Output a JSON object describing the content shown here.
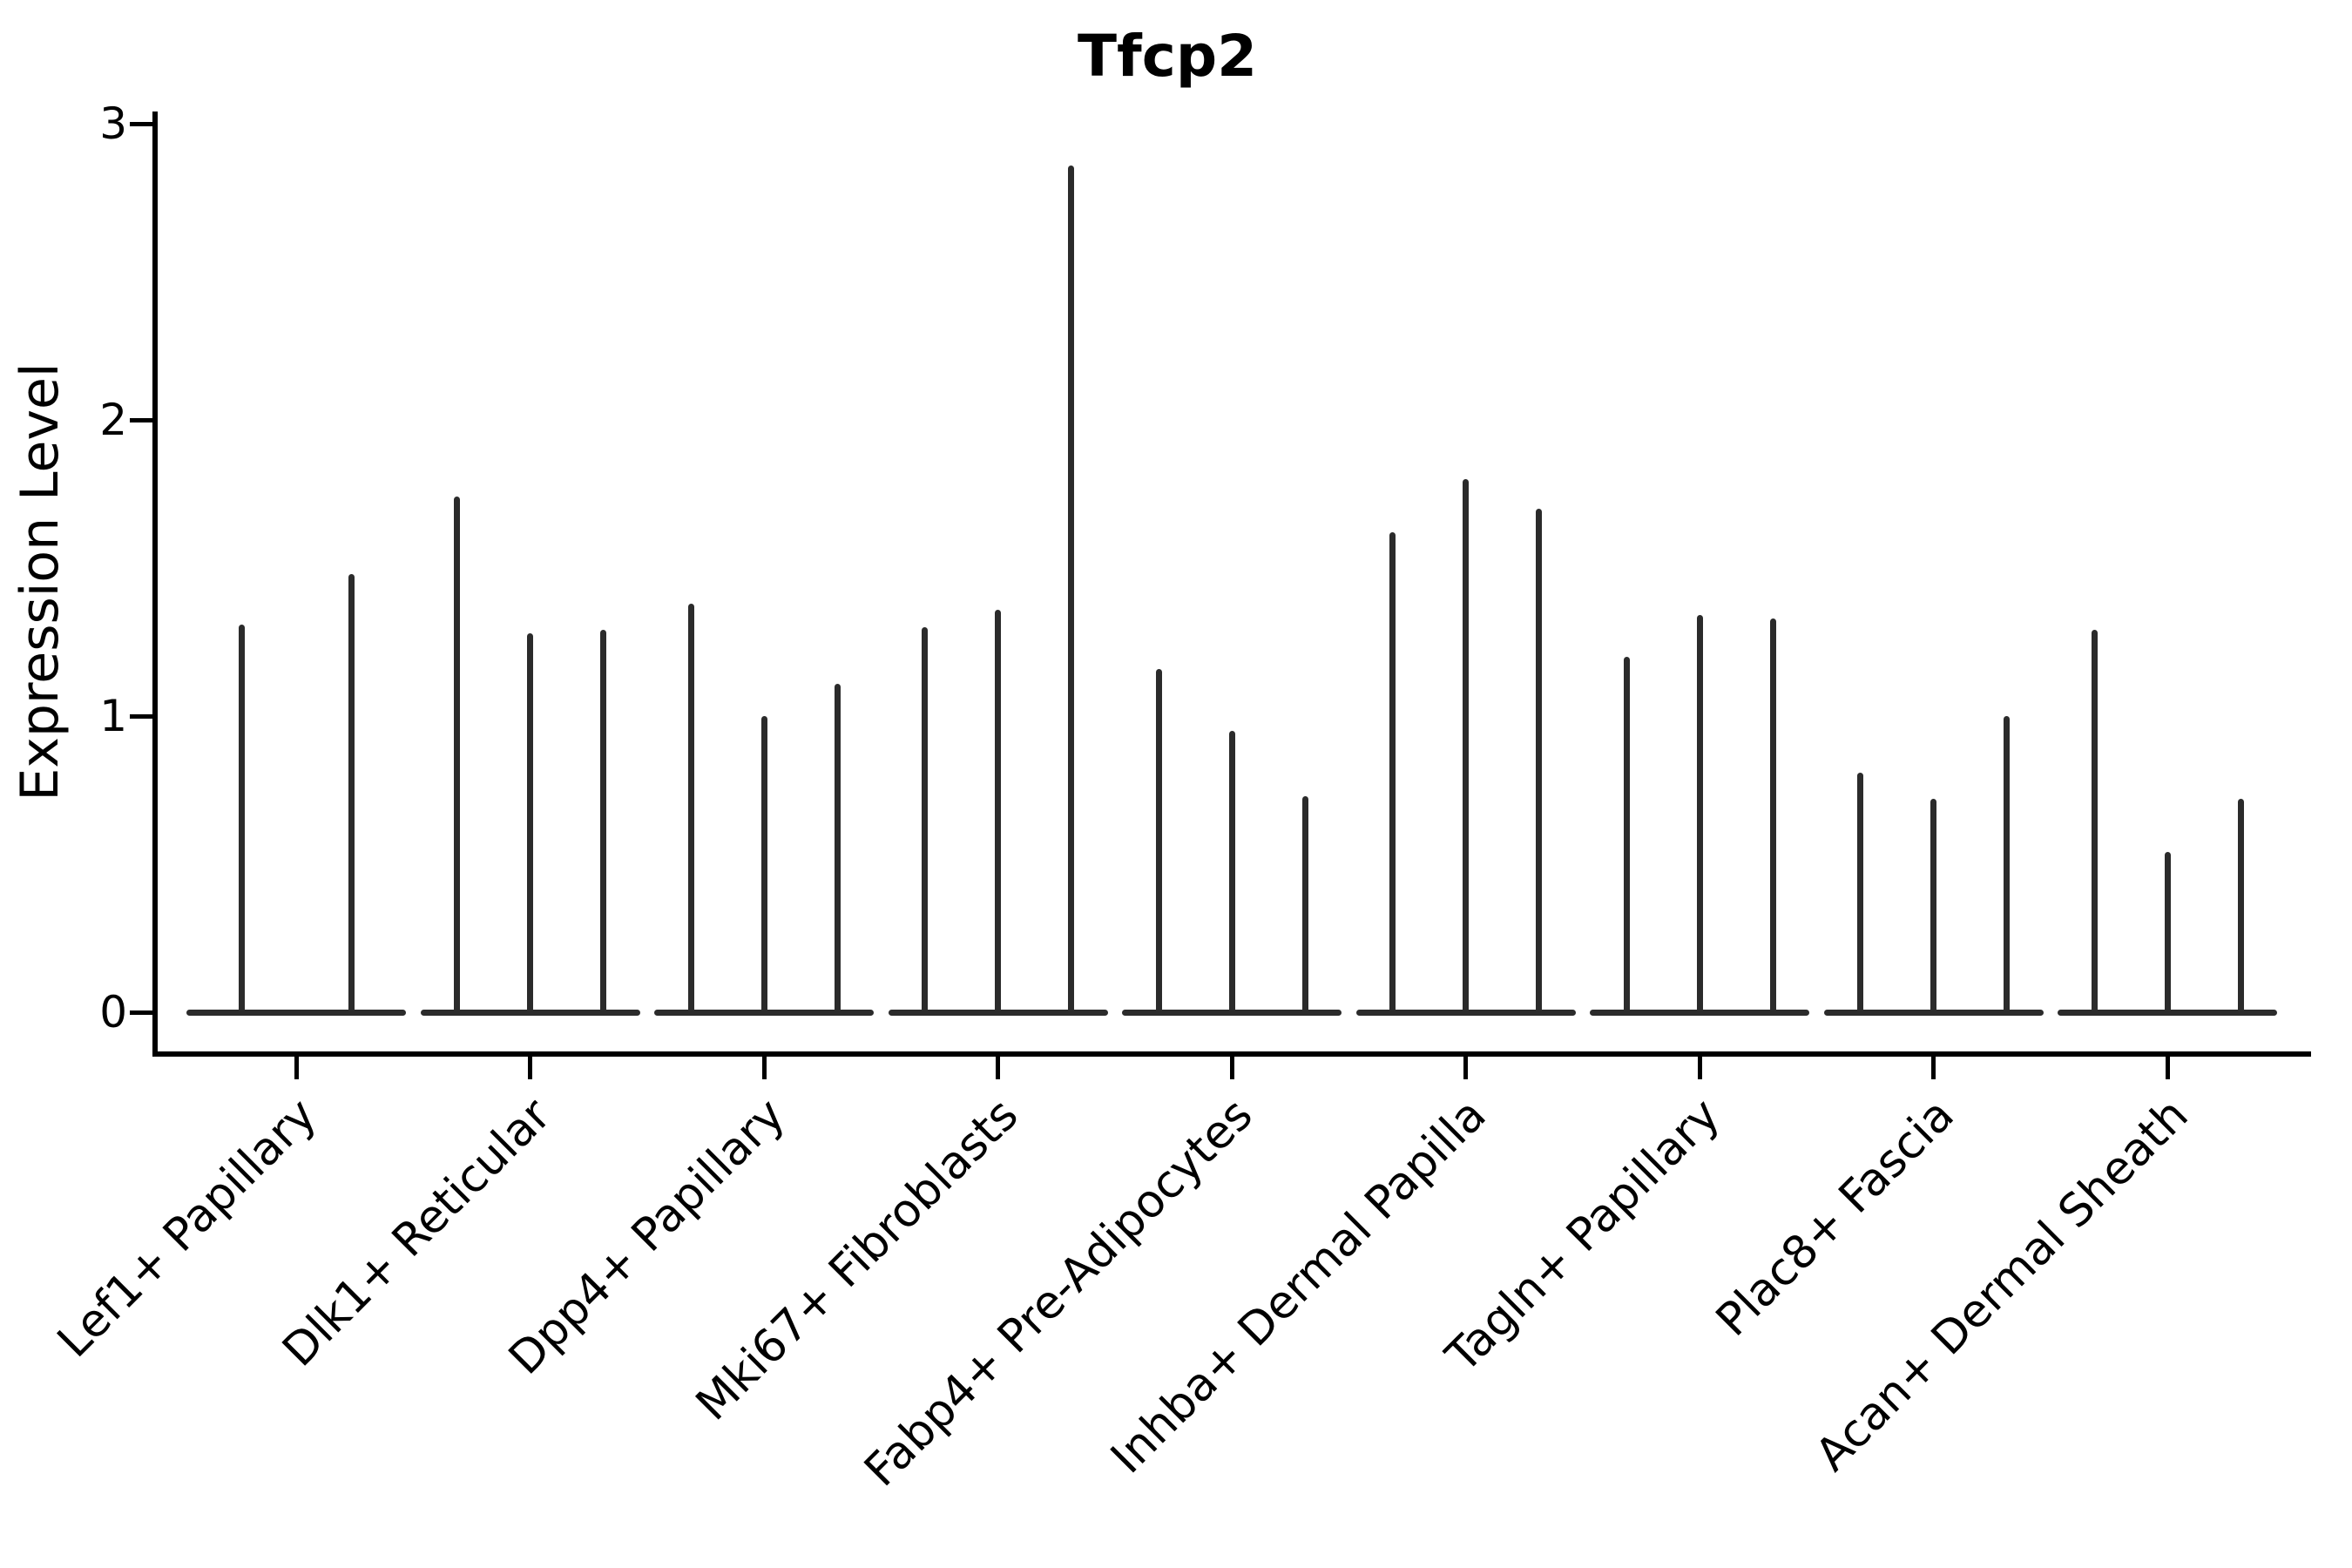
{
  "title": "Tfcp2",
  "chart_data": {
    "type": "violin",
    "title": "Tfcp2",
    "subtitle": "",
    "xlabel": "",
    "ylabel": "Expression Level",
    "ylim": [
      0,
      3
    ],
    "yticks": [
      0,
      1,
      2,
      3
    ],
    "grid": false,
    "legend": null,
    "categories": [
      "Lef1+ Papillary",
      "Dlk1+ Reticular",
      "Dpp4+ Papillary",
      "Mki67+ Fibroblasts",
      "Fabp4+ Pre-Adipocytes",
      "Inhba+ Dermal Papilla",
      "Tagln+ Papillary",
      "Plac8+ Fascia",
      "Acan+ Dermal Sheath"
    ],
    "groups": [
      {
        "category": "Lef1+ Papillary",
        "spike_max_values": [
          1.31,
          1.48
        ]
      },
      {
        "category": "Dlk1+ Reticular",
        "spike_max_values": [
          1.74,
          1.28,
          1.29
        ]
      },
      {
        "category": "Dpp4+ Papillary",
        "spike_max_values": [
          1.38,
          1.0,
          1.11
        ]
      },
      {
        "category": "Mki67+ Fibroblasts",
        "spike_max_values": [
          1.3,
          1.36,
          2.86
        ]
      },
      {
        "category": "Fabp4+ Pre-Adipocytes",
        "spike_max_values": [
          1.16,
          0.95,
          0.73
        ]
      },
      {
        "category": "Inhba+ Dermal Papilla",
        "spike_max_values": [
          1.62,
          1.8,
          1.7
        ]
      },
      {
        "category": "Tagln+ Papillary",
        "spike_max_values": [
          1.2,
          1.34,
          1.33
        ]
      },
      {
        "category": "Plac8+ Fascia",
        "spike_max_values": [
          0.81,
          0.72,
          1.0
        ]
      },
      {
        "category": "Acan+ Dermal Sheath",
        "spike_max_values": [
          1.29,
          0.54,
          0.72
        ]
      }
    ],
    "style": {
      "violin_color": "#2b2b2b",
      "axis_color": "#000000",
      "background_color": "#ffffff"
    }
  }
}
